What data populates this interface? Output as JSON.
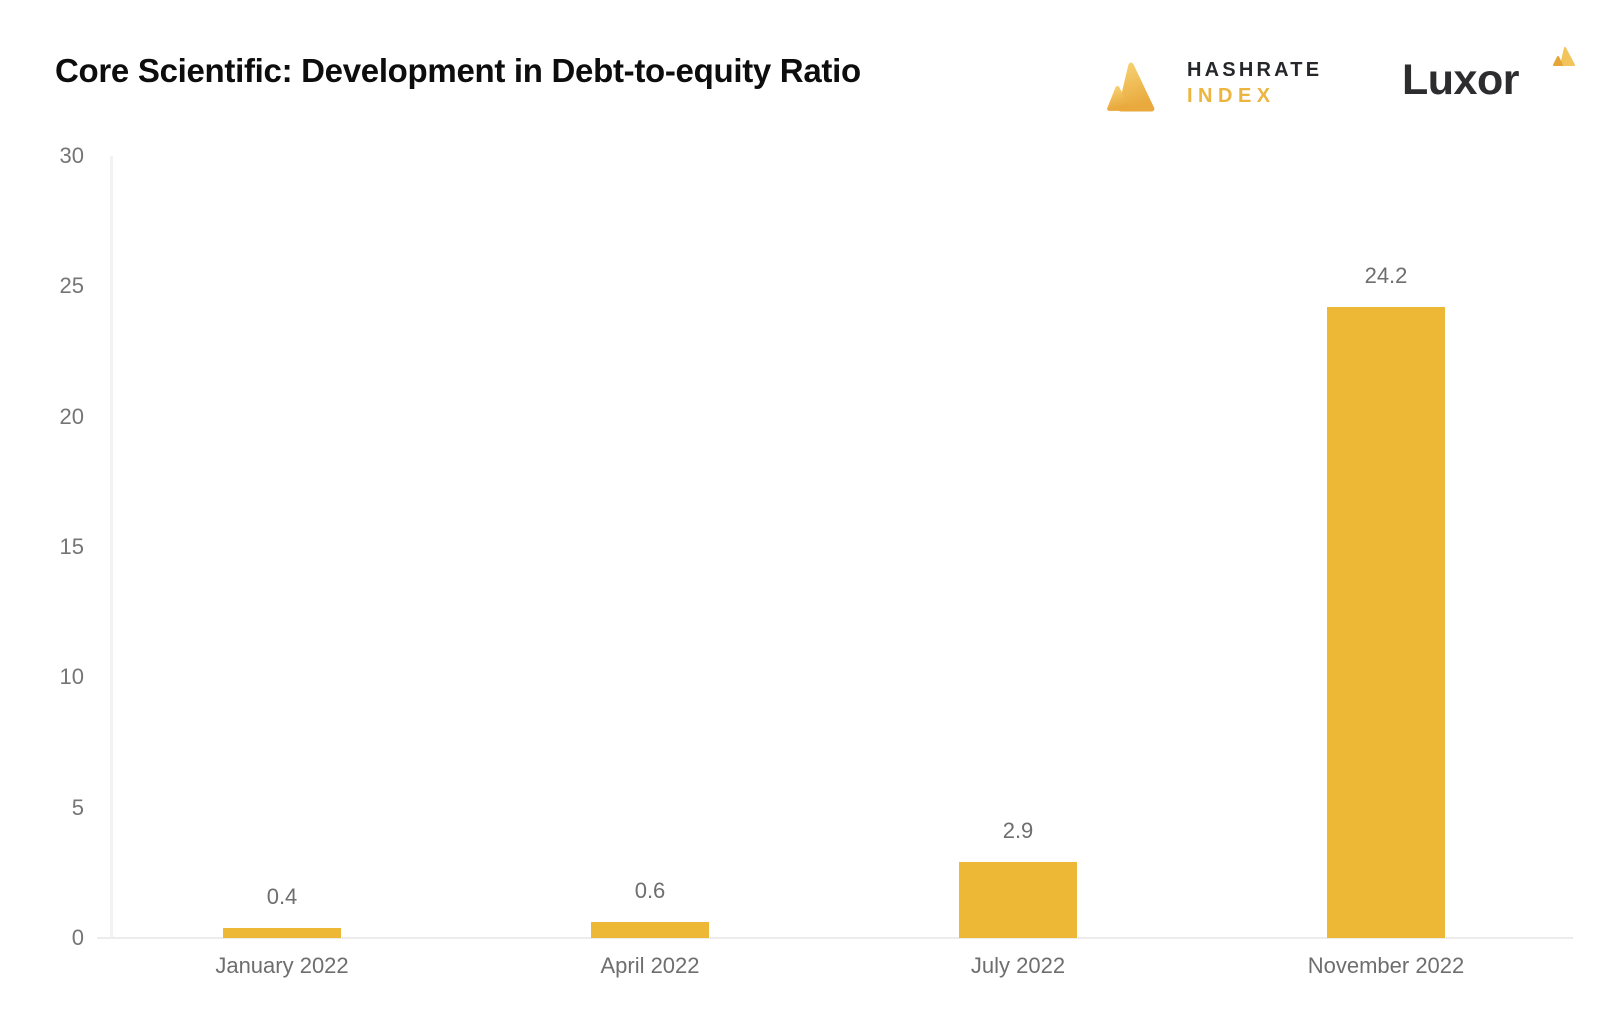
{
  "header": {
    "title": "Core Scientific: Development in Debt-to-equity Ratio",
    "hashrate_index_logo": {
      "line1": "HASHRATE",
      "line2": "INDEX",
      "text_color_primary": "#26272b",
      "text_color_accent": "#ecb53f"
    },
    "luxor_logo": {
      "text": "Luxor",
      "text_color": "#2d2d30"
    }
  },
  "chart_data": {
    "type": "bar",
    "title": "Core Scientific: Development in Debt-to-equity Ratio",
    "categories": [
      "January 2022",
      "April 2022",
      "July 2022",
      "November 2022"
    ],
    "values": [
      0.4,
      0.6,
      2.9,
      24.2
    ],
    "value_labels": [
      "0.4",
      "0.6",
      "2.9",
      "24.2"
    ],
    "xlabel": "",
    "ylabel": "",
    "ylim": [
      0,
      30
    ],
    "yticks": [
      0,
      5,
      10,
      15,
      20,
      25,
      30
    ],
    "grid": false,
    "legend": "none",
    "bar_color": "#eeb837",
    "axis_line_color": "#f0f0f0",
    "tick_label_color": "#757575",
    "value_label_color": "#6e6e6e"
  }
}
